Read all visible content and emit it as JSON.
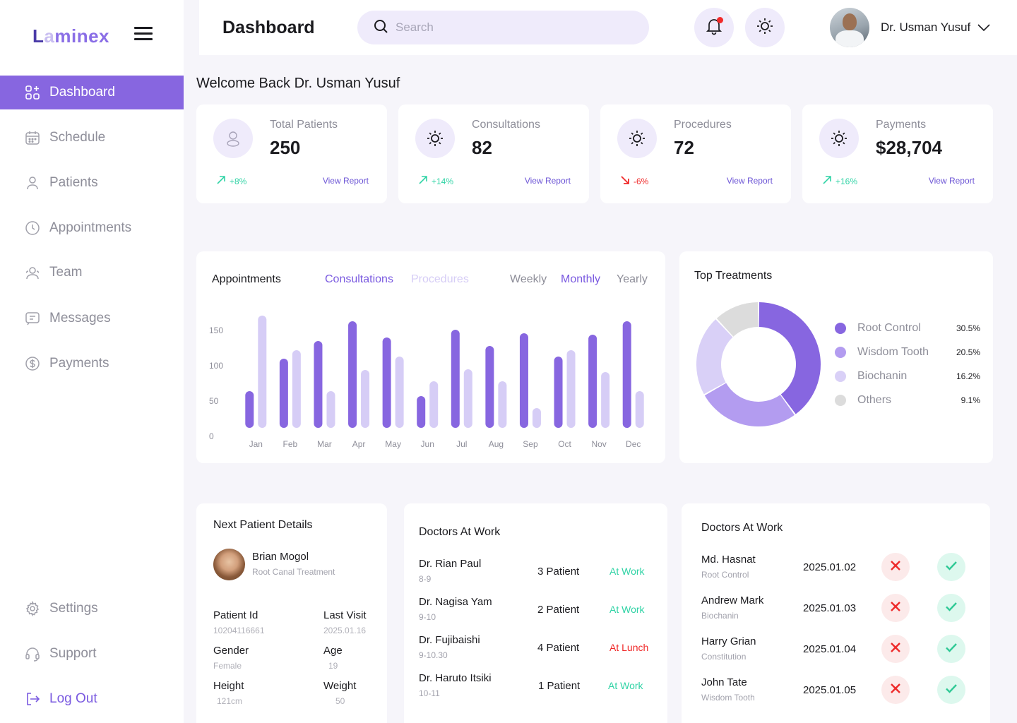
{
  "brand": {
    "logo_parts": [
      "L",
      "a",
      "minex"
    ]
  },
  "sidebar": {
    "items": [
      {
        "label": "Dashboard",
        "icon": "grid-plus-icon",
        "active": true
      },
      {
        "label": "Schedule",
        "icon": "calendar-icon"
      },
      {
        "label": "Patients",
        "icon": "user-icon"
      },
      {
        "label": "Appointments",
        "icon": "clock-icon"
      },
      {
        "label": "Team",
        "icon": "team-icon"
      },
      {
        "label": "Messages",
        "icon": "message-icon"
      },
      {
        "label": "Payments",
        "icon": "dollar-icon"
      }
    ],
    "bottom": [
      {
        "label": "Settings",
        "icon": "gear-icon"
      },
      {
        "label": "Support",
        "icon": "headset-icon"
      },
      {
        "label": "Log Out",
        "icon": "logout-icon"
      }
    ]
  },
  "header": {
    "title": "Dashboard",
    "search_placeholder": "Search",
    "user_name": "Dr. Usman Yusuf"
  },
  "welcome": "Welcome Back Dr. Usman Yusuf",
  "stats": [
    {
      "label": "Total Patients",
      "value": "250",
      "trend": "+8%",
      "direction": "up",
      "link": "View Report",
      "icon": "user-icon"
    },
    {
      "label": "Consultations",
      "value": "82",
      "trend": "+14%",
      "direction": "up",
      "link": "View Report",
      "icon": "sun-icon"
    },
    {
      "label": "Procedures",
      "value": "72",
      "trend": "-6%",
      "direction": "down",
      "link": "View Report",
      "icon": "sun-icon"
    },
    {
      "label": "Payments",
      "value": "$28,704",
      "trend": "+16%",
      "direction": "up",
      "link": "View Report",
      "icon": "sun-icon"
    }
  ],
  "appointments_chart": {
    "title": "Appointments",
    "series_tabs": [
      "Consultations",
      "Procedures"
    ],
    "active_series_tab": "Consultations",
    "period_tabs": [
      "Weekly",
      "Monthly",
      "Yearly"
    ],
    "active_period_tab": "Monthly"
  },
  "chart_data": {
    "type": "bar",
    "title": "Appointments",
    "categories": [
      "Jan",
      "Feb",
      "Mar",
      "Apr",
      "May",
      "Jun",
      "Jul",
      "Aug",
      "Sep",
      "Oct",
      "Nov",
      "Dec"
    ],
    "yticks": [
      0,
      50,
      100,
      150
    ],
    "ylim": [
      0,
      170
    ],
    "series": [
      {
        "name": "Consultations",
        "color": "#8766E0",
        "values": [
          52,
          98,
          123,
          151,
          128,
          45,
          139,
          116,
          134,
          101,
          132,
          151
        ]
      },
      {
        "name": "Procedures",
        "color": "#D6CDF6",
        "values": [
          159,
          110,
          52,
          82,
          101,
          66,
          83,
          66,
          28,
          110,
          79,
          52
        ]
      }
    ],
    "grid": false,
    "legend": "none"
  },
  "top_treatments": {
    "title": "Top Treatments",
    "items": [
      {
        "name": "Root Control",
        "value": "30.5%",
        "color": "#8766E0"
      },
      {
        "name": "Wisdom Tooth",
        "value": "20.5%",
        "color": "#B39CF0"
      },
      {
        "name": "Biochanin",
        "value": "16.2%",
        "color": "#D9D0F7"
      },
      {
        "name": "Others",
        "value": "9.1%",
        "color": "#DCDCDC"
      }
    ]
  },
  "next_patient": {
    "title": "Next Patient Details",
    "name": "Brian Mogol",
    "treatment": "Root Canal Treatment",
    "fields": [
      {
        "label": "Patient Id",
        "value": "10204116661"
      },
      {
        "label": "Last Visit",
        "value": "2025.01.16"
      },
      {
        "label": "Gender",
        "value": "Female"
      },
      {
        "label": "Age",
        "value": "19"
      },
      {
        "label": "Height",
        "value": "121cm"
      },
      {
        "label": "Weight",
        "value": "50"
      }
    ]
  },
  "doctors_at_work": {
    "title": "Doctors At Work",
    "rows": [
      {
        "name": "Dr. Rian Paul",
        "time": "8-9",
        "patients": "3 Patient",
        "status": "At Work",
        "status_color": "#2FD3A5"
      },
      {
        "name": "Dr. Nagisa Yam",
        "time": "9-10",
        "patients": "2 Patient",
        "status": "At Work",
        "status_color": "#2FD3A5"
      },
      {
        "name": "Dr. Fujibaishi",
        "time": "9-10.30",
        "patients": "4 Patient",
        "status": "At Lunch",
        "status_color": "#F02A2A"
      },
      {
        "name": "Dr. Haruto Itsiki",
        "time": "10-11",
        "patients": "1 Patient",
        "status": "At Work",
        "status_color": "#2FD3A5"
      }
    ]
  },
  "approvals": {
    "title": "Doctors At Work",
    "rows": [
      {
        "name": "Md. Hasnat",
        "treatment": "Root Control",
        "date": "2025.01.02"
      },
      {
        "name": "Andrew Mark",
        "treatment": "Biochanin",
        "date": "2025.01.03"
      },
      {
        "name": "Harry Grian",
        "treatment": "Constitution",
        "date": "2025.01.04"
      },
      {
        "name": "John Tate",
        "treatment": "Wisdom Tooth",
        "date": "2025.01.05"
      }
    ]
  }
}
